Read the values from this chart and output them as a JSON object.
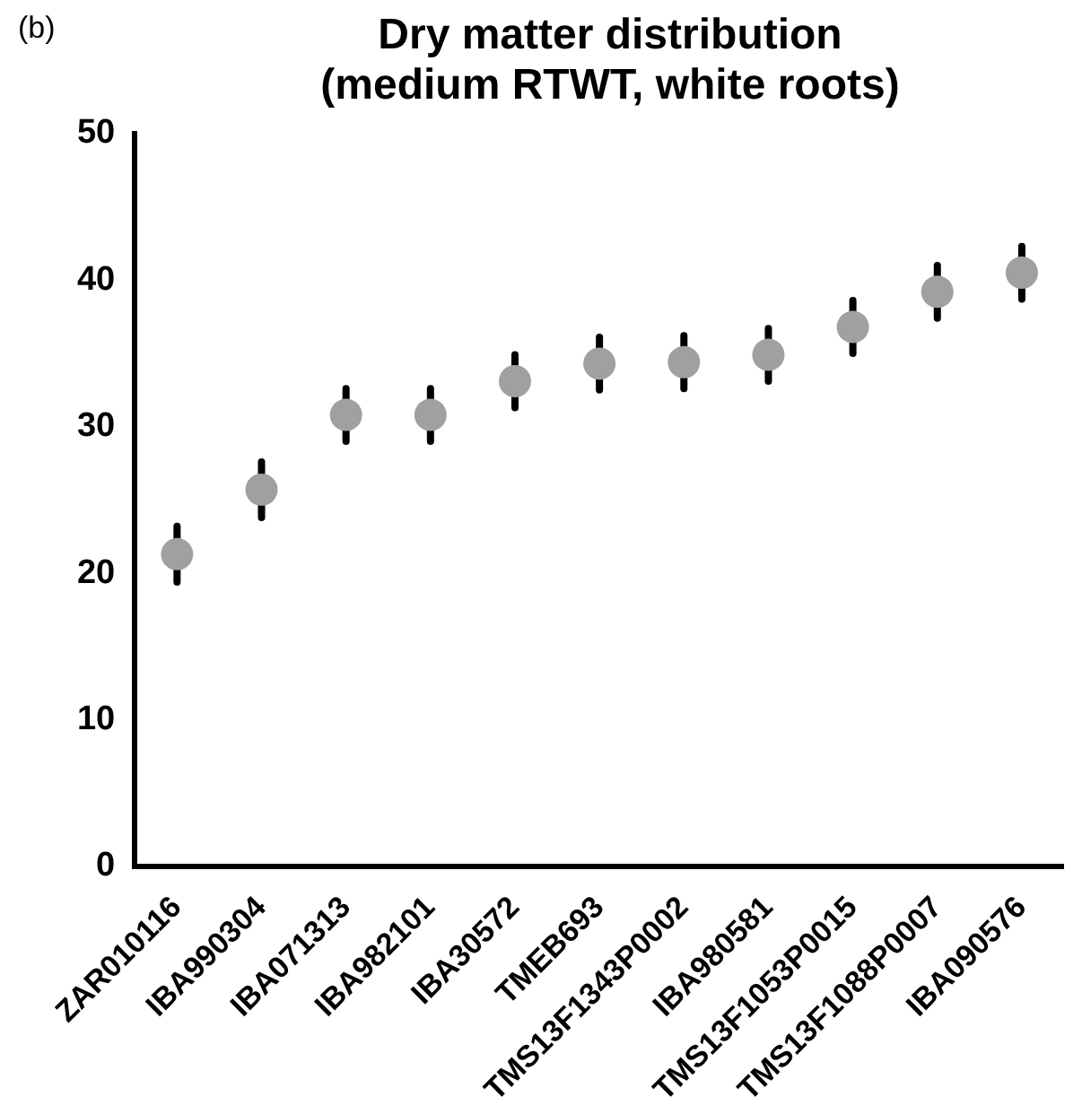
{
  "chart_data": {
    "type": "scatter",
    "title": "Dry matter distribution\n(medium RTWT, white roots)",
    "annotations": [
      "(b)"
    ],
    "categories": [
      "ZAR010116",
      "IBA990304",
      "IBA071313",
      "IBA982101",
      "IBA30572",
      "TMEB693",
      "TMS13F1343P0002",
      "IBA980581",
      "TMS13F1053P0015",
      "TMS13F1088P0007",
      "IBA090576"
    ],
    "values": [
      21.3,
      25.7,
      30.8,
      30.8,
      33.1,
      34.3,
      34.4,
      34.9,
      36.8,
      39.2,
      40.5
    ],
    "errors": [
      1.9,
      1.9,
      1.8,
      1.8,
      1.8,
      1.8,
      1.8,
      1.8,
      1.8,
      1.8,
      1.8
    ],
    "color": "#a0a0a0",
    "marker": "circle",
    "ylim": [
      0,
      50
    ],
    "yticks": [
      0,
      10,
      20,
      30,
      40,
      50
    ],
    "grid": false,
    "legend": false
  }
}
